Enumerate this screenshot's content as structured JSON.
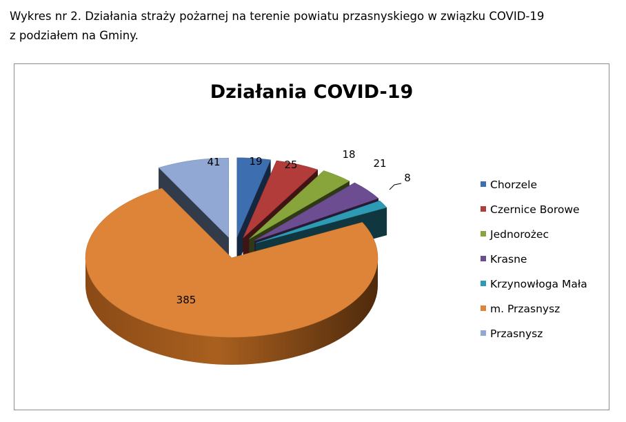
{
  "caption": {
    "line1": "Wykres nr 2. Działania straży pożarnej na terenie powiatu przasnyskiego w związku COVID-19",
    "line2": "z podziałem na Gminy."
  },
  "chart_data": {
    "type": "pie",
    "title": "Działania COVID-19",
    "legend_position": "right",
    "categories": [
      "Chorzele",
      "Czernice Borowe",
      "Jednorożec",
      "Krasne",
      "Krzynowłoga Mała",
      "m. Przasnysz",
      "Przasnysz"
    ],
    "values": [
      19,
      25,
      18,
      21,
      8,
      385,
      41
    ],
    "colors": [
      "#3d6fb0",
      "#b23c3a",
      "#87a53b",
      "#6c4d92",
      "#2e9bb4",
      "#dd8439",
      "#90a8d3"
    ],
    "data_labels": [
      "19",
      "25",
      "18",
      "21",
      "8",
      "385",
      "41"
    ]
  }
}
